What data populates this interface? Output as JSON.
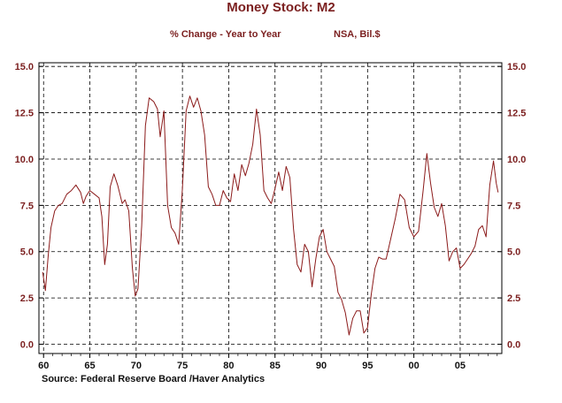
{
  "chart_data": {
    "type": "line",
    "title": "Money Stock: M2",
    "subtitle_left": "% Change - Year to Year",
    "subtitle_right": "NSA, Bil.$",
    "source": "Source:  Federal Reserve Board /Haver Analytics",
    "xlabel": "",
    "ylabel": "",
    "xlim": [
      1959.5,
      2009.5
    ],
    "ylim": [
      -0.5,
      15.2
    ],
    "grid": true,
    "y_ticks": [
      {
        "value": 0,
        "label": "0.0"
      },
      {
        "value": 2.5,
        "label": "2.5"
      },
      {
        "value": 5,
        "label": "5.0"
      },
      {
        "value": 7.5,
        "label": "7.5"
      },
      {
        "value": 10,
        "label": "10.0"
      },
      {
        "value": 12.5,
        "label": "12.5"
      },
      {
        "value": 15,
        "label": "15.0"
      }
    ],
    "x_ticks": [
      {
        "value": 1960,
        "label": "60"
      },
      {
        "value": 1965,
        "label": "65"
      },
      {
        "value": 1970,
        "label": "70"
      },
      {
        "value": 1975,
        "label": "75"
      },
      {
        "value": 1980,
        "label": "80"
      },
      {
        "value": 1985,
        "label": "85"
      },
      {
        "value": 1990,
        "label": "90"
      },
      {
        "value": 1995,
        "label": "95"
      },
      {
        "value": 2000,
        "label": "00"
      },
      {
        "value": 2005,
        "label": "05"
      }
    ],
    "line_color": "#8b1a1a",
    "series": [
      {
        "x": [
          1959.9,
          1960.2,
          1960.5,
          1960.8,
          1961.2,
          1961.6,
          1962.0,
          1962.5,
          1963.0,
          1963.5,
          1964.0,
          1964.3,
          1964.6,
          1965.0,
          1965.5,
          1966.0,
          1966.3,
          1966.6,
          1966.9,
          1967.2,
          1967.6,
          1968.0,
          1968.5,
          1968.8,
          1969.2,
          1969.6,
          1969.9,
          1970.2,
          1970.6,
          1971.0,
          1971.4,
          1971.9,
          1972.3,
          1972.6,
          1973.0,
          1973.4,
          1973.8,
          1974.2,
          1974.6,
          1975.0,
          1975.4,
          1975.8,
          1976.2,
          1976.6,
          1977.0,
          1977.4,
          1977.8,
          1978.2,
          1978.6,
          1979.0,
          1979.4,
          1979.8,
          1980.2,
          1980.6,
          1981.0,
          1981.4,
          1981.8,
          1982.2,
          1982.6,
          1983.0,
          1983.4,
          1983.8,
          1984.2,
          1984.6,
          1985.0,
          1985.4,
          1985.8,
          1986.2,
          1986.6,
          1987.0,
          1987.4,
          1987.8,
          1988.2,
          1988.6,
          1989.0,
          1989.4,
          1989.8,
          1990.2,
          1990.6,
          1991.0,
          1991.4,
          1991.8,
          1992.2,
          1992.6,
          1993.0,
          1993.4,
          1993.8,
          1994.2,
          1994.6,
          1995.0,
          1995.4,
          1995.8,
          1996.2,
          1996.6,
          1997.0,
          1997.5,
          1998.0,
          1998.5,
          1999.0,
          1999.5,
          2000.0,
          2000.5,
          2001.0,
          2001.4,
          2001.8,
          2002.2,
          2002.6,
          2003.0,
          2003.4,
          2003.8,
          2004.2,
          2004.6,
          2005.0,
          2005.4,
          2005.8,
          2006.2,
          2006.6,
          2007.0,
          2007.4,
          2007.8,
          2008.2,
          2008.6,
          2008.9,
          2009.1
        ],
        "y": [
          3.9,
          2.9,
          4.8,
          6.3,
          7.2,
          7.5,
          7.6,
          8.1,
          8.3,
          8.6,
          8.2,
          7.6,
          8.0,
          8.3,
          8.1,
          7.9,
          6.9,
          4.3,
          5.4,
          8.5,
          9.2,
          8.6,
          7.6,
          7.8,
          7.2,
          4.1,
          2.6,
          3.0,
          6.4,
          11.8,
          13.3,
          13.1,
          12.7,
          11.2,
          12.6,
          7.5,
          6.3,
          6.0,
          5.4,
          8.4,
          12.6,
          13.4,
          12.8,
          13.3,
          12.6,
          11.3,
          8.5,
          8.1,
          7.5,
          7.5,
          8.3,
          7.9,
          7.7,
          9.2,
          8.3,
          9.7,
          9.1,
          9.8,
          10.8,
          12.7,
          11.3,
          8.3,
          7.9,
          7.6,
          8.4,
          9.3,
          8.3,
          9.6,
          9.0,
          6.2,
          4.3,
          3.9,
          5.4,
          5.0,
          3.1,
          4.6,
          5.8,
          6.2,
          5.0,
          4.6,
          4.2,
          2.8,
          2.4,
          1.7,
          0.5,
          1.4,
          1.8,
          1.8,
          0.6,
          0.9,
          2.7,
          4.1,
          4.7,
          4.6,
          4.6,
          5.7,
          6.8,
          8.1,
          7.8,
          6.3,
          5.8,
          6.1,
          8.3,
          10.3,
          8.7,
          7.4,
          6.9,
          7.6,
          6.4,
          4.5,
          5.0,
          5.2,
          4.1,
          4.3,
          4.6,
          4.9,
          5.3,
          6.2,
          6.4,
          5.8,
          8.6,
          9.9,
          8.7,
          8.2
        ]
      }
    ]
  }
}
